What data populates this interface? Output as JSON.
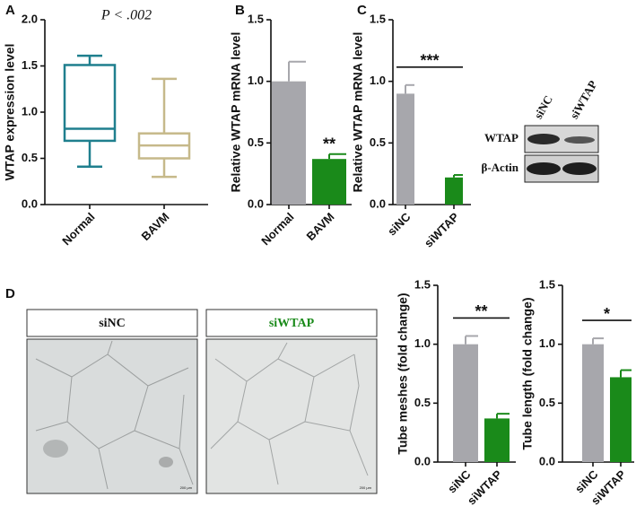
{
  "panel_labels": [
    "A",
    "B",
    "C",
    "D"
  ],
  "blot": {
    "lanes": [
      "siNC",
      "siWTAP"
    ],
    "rows": [
      "WTAP",
      "β-Actin"
    ]
  },
  "micrographs": [
    "siNC",
    "siWTAP"
  ],
  "scale_bar": "200 μm",
  "chart_data": [
    {
      "type": "box",
      "title": "P < .002",
      "ylabel": "WTAP expression level",
      "categories": [
        "Normal",
        "BAVM"
      ],
      "colors": [
        "#1f7f8e",
        "#c6b98a"
      ],
      "boxes": [
        {
          "min": 0.41,
          "q1": 0.69,
          "median": 0.82,
          "q3": 1.51,
          "max": 1.61
        },
        {
          "min": 0.3,
          "q1": 0.5,
          "median": 0.64,
          "q3": 0.77,
          "max": 1.36
        }
      ],
      "ylim": [
        0,
        2
      ],
      "yticks": [
        {
          "value": 0,
          "label": "0.0"
        },
        {
          "value": 0.5,
          "label": "0.5"
        },
        {
          "value": 1,
          "label": "1.0"
        },
        {
          "value": 1.5,
          "label": "1.5"
        },
        {
          "value": 2,
          "label": "2.0"
        }
      ]
    },
    {
      "type": "bar",
      "ylabel": "Relative WTAP mRNA level",
      "categories": [
        "Normal",
        "BAVM"
      ],
      "values": [
        1.0,
        0.37
      ],
      "errors": [
        0.16,
        0.04
      ],
      "colors": [
        "#a7a7ac",
        "#1a8a1a"
      ],
      "significance": "**",
      "bracket": false,
      "ylim": [
        0,
        1.5
      ],
      "yticks": [
        {
          "value": 0,
          "label": "0.0"
        },
        {
          "value": 0.5,
          "label": "0.5"
        },
        {
          "value": 1,
          "label": "1.0"
        },
        {
          "value": 1.5,
          "label": "1.5"
        }
      ]
    },
    {
      "type": "bar",
      "ylabel": "Relative WTAP mRNA level",
      "categories": [
        "siNC",
        "siWTAP"
      ],
      "values": [
        0.9,
        0.22
      ],
      "errors": [
        0.07,
        0.02
      ],
      "colors": [
        "#a7a7ac",
        "#1a8a1a"
      ],
      "significance": "***",
      "bracket": true,
      "ylim": [
        0,
        1.5
      ],
      "yticks": [
        {
          "value": 0,
          "label": "0.0"
        },
        {
          "value": 0.5,
          "label": "0.5"
        },
        {
          "value": 1,
          "label": "1.0"
        },
        {
          "value": 1.5,
          "label": "1.5"
        }
      ]
    },
    {
      "type": "bar",
      "ylabel": "Tube meshes (fold change)",
      "categories": [
        "siNC",
        "siWTAP"
      ],
      "values": [
        1.0,
        0.37
      ],
      "errors": [
        0.07,
        0.04
      ],
      "colors": [
        "#a7a7ac",
        "#1a8a1a"
      ],
      "significance": "**",
      "bracket": true,
      "ylim": [
        0,
        1.5
      ],
      "yticks": [
        {
          "value": 0,
          "label": "0.0"
        },
        {
          "value": 0.5,
          "label": "0.5"
        },
        {
          "value": 1,
          "label": "1.0"
        },
        {
          "value": 1.5,
          "label": "1.5"
        }
      ]
    },
    {
      "type": "bar",
      "ylabel": "Tube length (fold change)",
      "categories": [
        "siNC",
        "siWTAP"
      ],
      "values": [
        1.0,
        0.72
      ],
      "errors": [
        0.05,
        0.06
      ],
      "colors": [
        "#a7a7ac",
        "#1a8a1a"
      ],
      "significance": "*",
      "bracket": true,
      "ylim": [
        0,
        1.5
      ],
      "yticks": [
        {
          "value": 0,
          "label": "0.0"
        },
        {
          "value": 0.5,
          "label": "0.5"
        },
        {
          "value": 1,
          "label": "1.0"
        },
        {
          "value": 1.5,
          "label": "1.5"
        }
      ]
    }
  ]
}
